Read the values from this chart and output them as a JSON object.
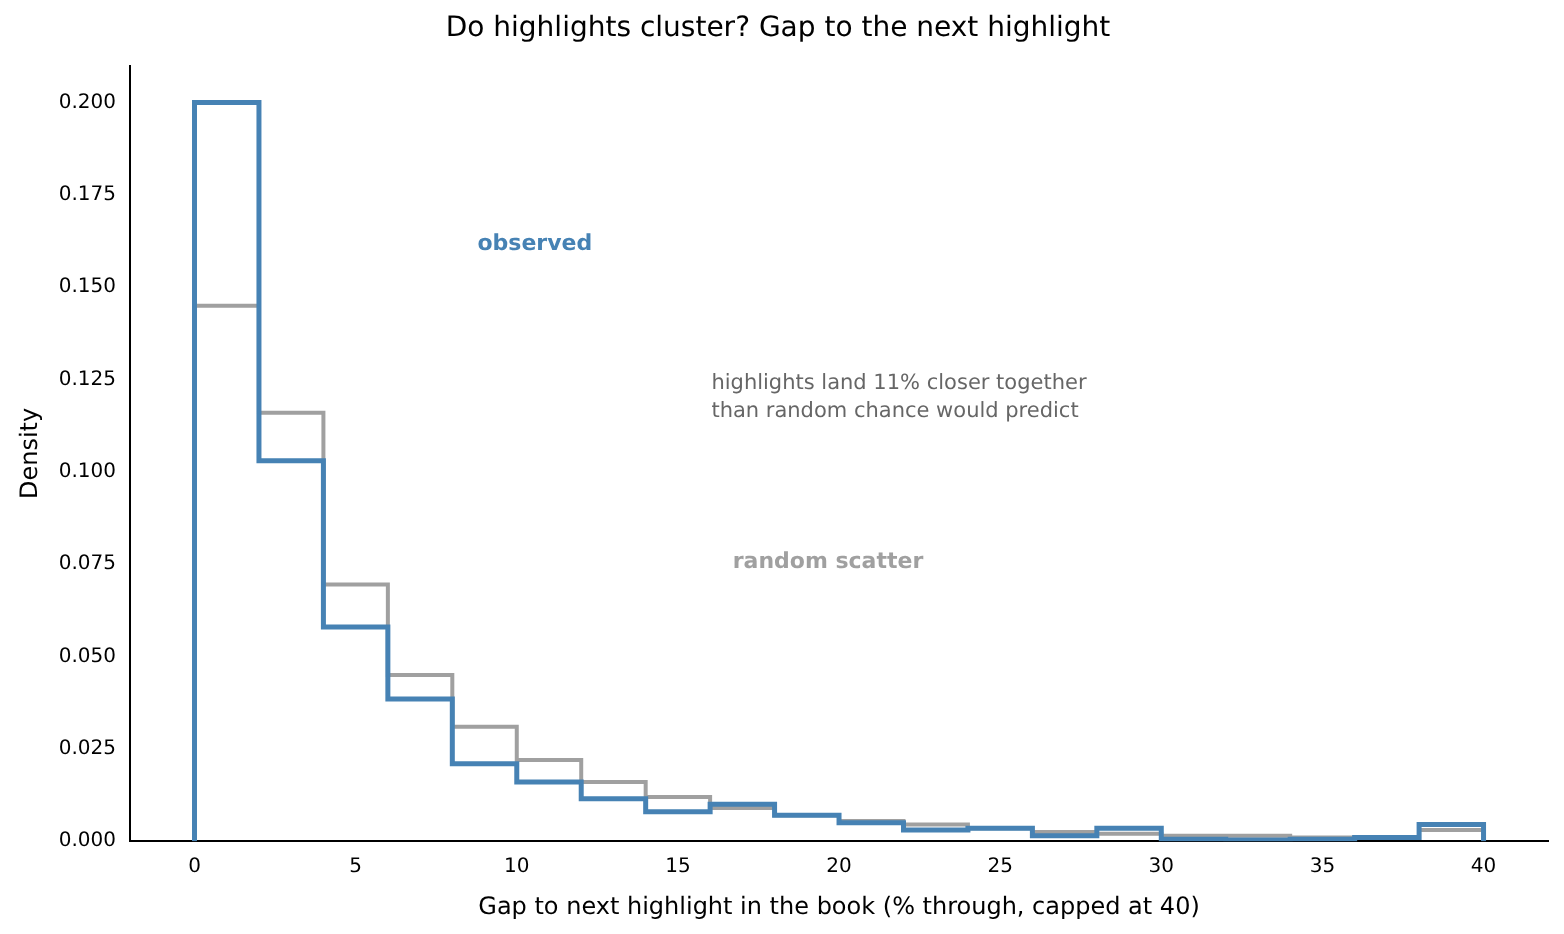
{
  "chart_data": {
    "type": "histogram",
    "title": "Do highlights cluster? Gap to the next highlight",
    "xlabel": "Gap to next highlight in the book (% through, capped at 40)",
    "ylabel": "Density",
    "bins": [
      0,
      2,
      4,
      6,
      8,
      10,
      12,
      14,
      16,
      18,
      20,
      22,
      24,
      26,
      28,
      30,
      32,
      34,
      36,
      38,
      40
    ],
    "series": [
      {
        "name": "observed",
        "color": "#4682b4",
        "values": [
          0.2,
          0.103,
          0.058,
          0.0385,
          0.021,
          0.016,
          0.0115,
          0.008,
          0.01,
          0.007,
          0.005,
          0.003,
          0.0035,
          0.0015,
          0.0035,
          0.0005,
          0.0003,
          0.0005,
          0.001,
          0.0045
        ]
      },
      {
        "name": "random scatter",
        "color": "#a0a0a0",
        "values": [
          0.145,
          0.116,
          0.0695,
          0.045,
          0.031,
          0.022,
          0.016,
          0.012,
          0.009,
          0.007,
          0.0055,
          0.0045,
          0.0035,
          0.0025,
          0.002,
          0.0015,
          0.0015,
          0.001,
          0.001,
          0.003
        ]
      }
    ],
    "xlim": [
      -2,
      42
    ],
    "xticks": [
      0,
      5,
      10,
      15,
      20,
      25,
      30,
      35,
      40
    ],
    "ylim": [
      0,
      0.21
    ],
    "yticks": [
      {
        "value": 0,
        "label": "0.000"
      },
      {
        "value": 0.025,
        "label": "0.025"
      },
      {
        "value": 0.05,
        "label": "0.050"
      },
      {
        "value": 0.075,
        "label": "0.075"
      },
      {
        "value": 0.1,
        "label": "0.100"
      },
      {
        "value": 0.125,
        "label": "0.125"
      },
      {
        "value": 0.15,
        "label": "0.150"
      },
      {
        "value": 0.175,
        "label": "0.175"
      },
      {
        "value": 0.2,
        "label": "0.200"
      }
    ],
    "annotations": [
      "highlights land 11% closer together\nthan random chance would predict"
    ],
    "grid": false,
    "legend": false
  }
}
